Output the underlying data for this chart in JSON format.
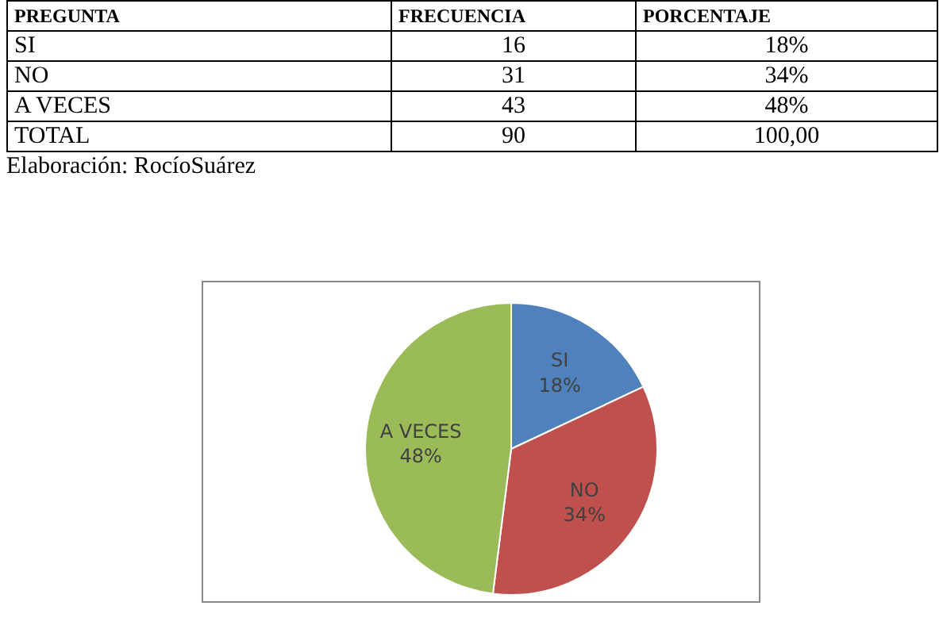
{
  "chart_data": [
    {
      "type": "other",
      "categories": [
        "PREGUNTA",
        "FRECUENCIA",
        "PORCENTAJE"
      ],
      "annotations": [
        "SI",
        "16",
        "18%",
        "NO",
        "31",
        "34%",
        "A VECES",
        "43",
        "48%",
        "TOTAL",
        "90",
        "100,00",
        "Elaboración: RocíoSuárez"
      ]
    },
    {
      "type": "pie",
      "categories": [
        "SI",
        "NO",
        "A VECES"
      ],
      "values": [
        18,
        34,
        48
      ],
      "colors": [
        "#4f81bd",
        "#c0504d",
        "#9bbb59"
      ],
      "value_labels": [
        "18%",
        "34%",
        "48%"
      ]
    }
  ]
}
